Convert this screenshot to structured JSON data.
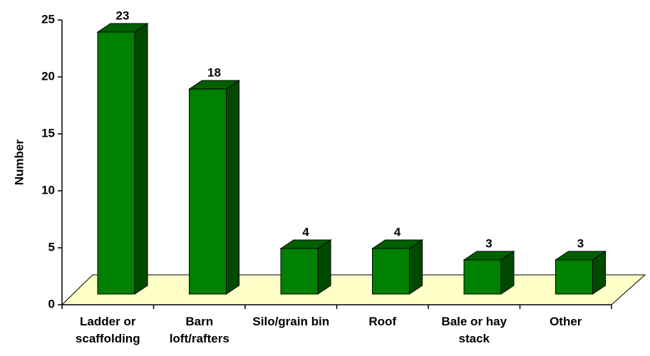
{
  "chart_data": {
    "type": "bar3d",
    "y_label": "Number",
    "categories": [
      "Ladder or scaffolding",
      "Barn loft/rafters",
      "Silo/grain bin",
      "Roof",
      "Bale or hay stack",
      "Other"
    ],
    "values": [
      23,
      18,
      4,
      4,
      3,
      3
    ],
    "color": "#008000",
    "ylim": [
      0,
      25
    ],
    "yticks": [
      0,
      5,
      10,
      15,
      20,
      25
    ]
  }
}
